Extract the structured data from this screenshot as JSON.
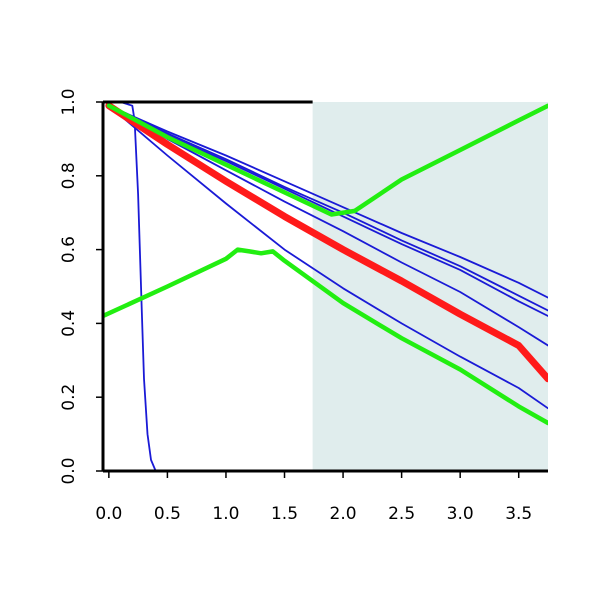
{
  "chart_data": {
    "type": "line",
    "title": "",
    "xlabel": "",
    "ylabel": "",
    "xlim": [
      -0.05,
      3.75
    ],
    "ylim": [
      0.0,
      1.0
    ],
    "grid": false,
    "x_ticks": [
      "0.0",
      "0.5",
      "1.0",
      "1.5",
      "2.0",
      "2.5",
      "3.0",
      "3.5"
    ],
    "y_ticks": [
      "0.0",
      "0.2",
      "0.4",
      "0.6",
      "0.8",
      "1.0"
    ],
    "shaded_region": {
      "x_from": 1.74,
      "x_to": 3.75,
      "color": "#e0eded"
    },
    "series": [
      {
        "color": "#1a1ad6",
        "width": 1.8,
        "x": [
          0.0,
          0.5,
          1.0,
          1.5,
          2.0,
          2.5,
          3.0,
          3.5,
          3.75
        ],
        "y": [
          0.99,
          0.92,
          0.855,
          0.785,
          0.715,
          0.645,
          0.58,
          0.51,
          0.47
        ]
      },
      {
        "color": "#1a1ad6",
        "width": 1.8,
        "x": [
          0.0,
          0.5,
          1.0,
          1.5,
          2.0,
          2.5,
          3.0,
          3.5,
          3.75
        ],
        "y": [
          0.99,
          0.915,
          0.845,
          0.77,
          0.7,
          0.625,
          0.555,
          0.475,
          0.435
        ]
      },
      {
        "color": "#1a1ad6",
        "width": 1.8,
        "x": [
          0.0,
          0.5,
          1.0,
          1.5,
          2.0,
          2.5,
          3.0,
          3.5,
          3.75
        ],
        "y": [
          0.99,
          0.91,
          0.84,
          0.765,
          0.69,
          0.615,
          0.545,
          0.46,
          0.42
        ]
      },
      {
        "color": "#1a1ad6",
        "width": 1.8,
        "x": [
          0.0,
          0.5,
          1.0,
          1.5,
          2.0,
          2.5,
          3.0,
          3.5,
          3.75
        ],
        "y": [
          0.99,
          0.9,
          0.815,
          0.73,
          0.65,
          0.565,
          0.485,
          0.39,
          0.34
        ]
      },
      {
        "color": "#1a1ad6",
        "width": 1.8,
        "x": [
          0.0,
          0.5,
          1.0,
          1.5,
          2.0,
          2.5,
          3.0,
          3.5,
          3.75
        ],
        "y": [
          0.99,
          0.885,
          0.785,
          0.69,
          0.6,
          0.515,
          0.425,
          0.34,
          0.25
        ]
      },
      {
        "color": "#1a1ad6",
        "width": 1.8,
        "x": [
          0.0,
          0.5,
          1.0,
          1.5,
          2.0,
          2.5,
          3.0,
          3.5,
          3.75
        ],
        "y": [
          0.99,
          0.855,
          0.725,
          0.6,
          0.495,
          0.4,
          0.31,
          0.225,
          0.17
        ]
      },
      {
        "color": "#1a1ad6",
        "width": 1.8,
        "x": [
          -0.05,
          0.1,
          0.2,
          0.22,
          0.25,
          0.28,
          0.3,
          0.33,
          0.36,
          0.4,
          0.5,
          1.0,
          2.0,
          3.0,
          3.75
        ],
        "y": [
          1.0,
          1.0,
          0.99,
          0.95,
          0.75,
          0.45,
          0.25,
          0.1,
          0.03,
          0.0,
          0.0,
          0.0,
          0.0,
          0.0,
          0.0
        ]
      },
      {
        "color": "#ff1a1a",
        "width": 7,
        "x": [
          0.0,
          0.5,
          1.0,
          1.5,
          2.0,
          2.5,
          3.0,
          3.5,
          3.75
        ],
        "y": [
          0.99,
          0.885,
          0.785,
          0.69,
          0.6,
          0.515,
          0.425,
          0.34,
          0.25
        ]
      },
      {
        "color": "#22ee11",
        "width": 4.5,
        "x": [
          0.0,
          0.5,
          1.0,
          1.5,
          1.9,
          2.1,
          2.5,
          3.0,
          3.5,
          3.75
        ],
        "y": [
          0.99,
          0.905,
          0.83,
          0.755,
          0.695,
          0.705,
          0.79,
          0.87,
          0.95,
          0.99
        ]
      },
      {
        "color": "#22ee11",
        "width": 4.5,
        "x": [
          -0.05,
          0.5,
          1.0,
          1.1,
          1.2,
          1.3,
          1.4,
          1.5,
          2.0,
          2.5,
          3.0,
          3.5,
          3.75
        ],
        "y": [
          0.42,
          0.5,
          0.575,
          0.6,
          0.595,
          0.59,
          0.595,
          0.57,
          0.455,
          0.36,
          0.275,
          0.175,
          0.13
        ]
      }
    ]
  }
}
